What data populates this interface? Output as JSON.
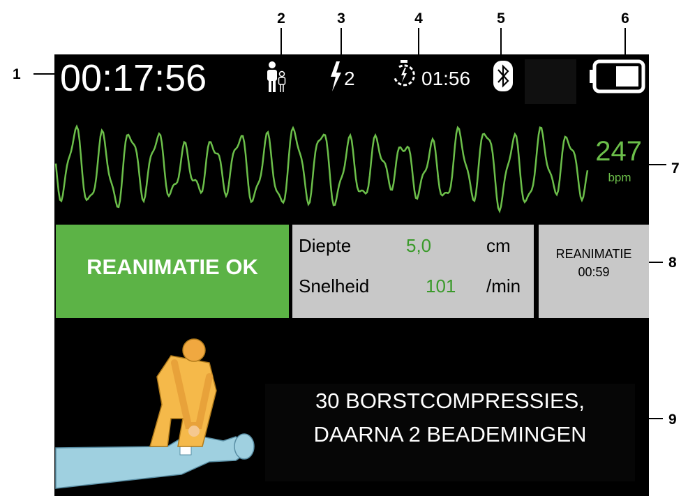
{
  "callouts": [
    "1",
    "2",
    "3",
    "4",
    "5",
    "6",
    "7",
    "8",
    "9"
  ],
  "status_bar": {
    "elapsed_time": "00:17:56",
    "shock_count": "2",
    "timer": "01:56"
  },
  "heart_rate": {
    "value": "247",
    "unit": "bpm"
  },
  "cpr_status": "REANIMATIE OK",
  "quality": {
    "rows": [
      {
        "label": "Diepte",
        "value": "5,0",
        "unit": "cm"
      },
      {
        "label": "Snelheid",
        "value": "101",
        "unit": "/min"
      }
    ]
  },
  "cpr_timer": {
    "label": "REANIMATIE",
    "time": "00:59"
  },
  "instruction": [
    "30 BORSTCOMPRESSIES,",
    "DAARNA 2 BEADEMINGEN"
  ]
}
